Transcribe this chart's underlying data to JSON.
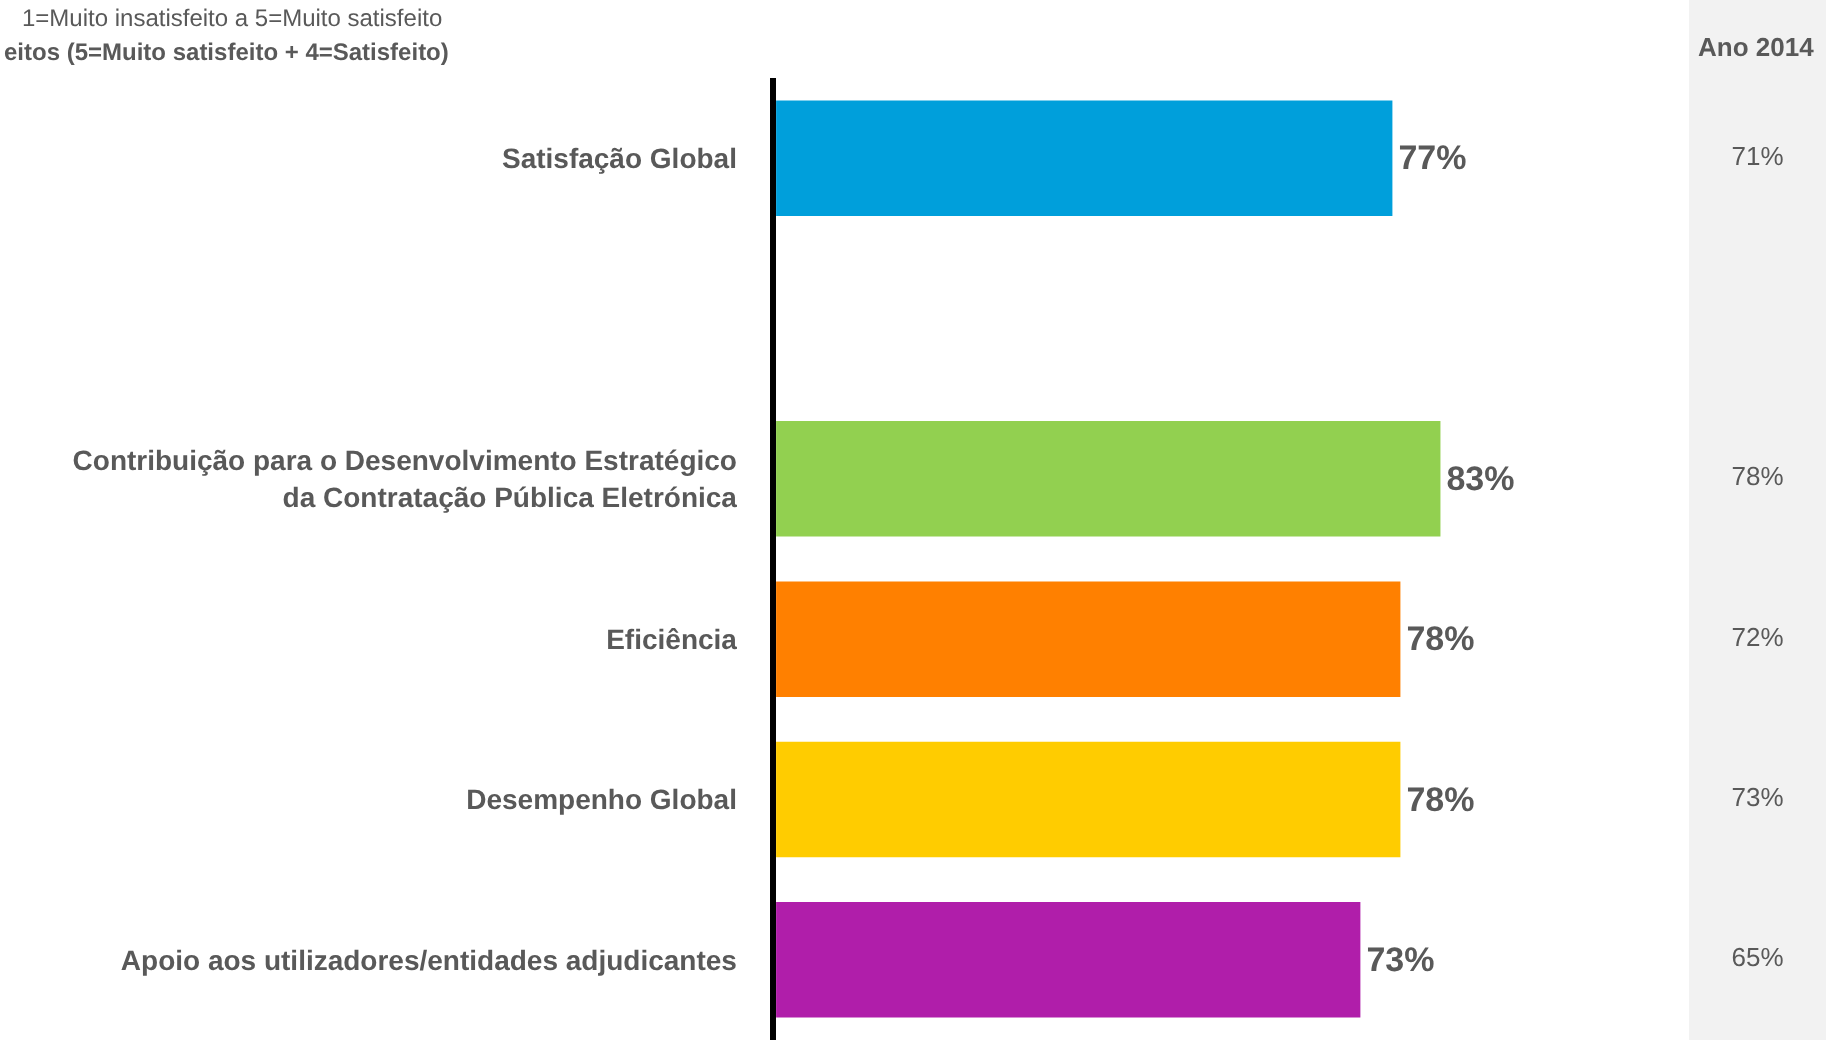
{
  "chart_data": [
    {
      "type": "bar",
      "orientation": "horizontal",
      "subtitle": "1=Muito insatisfeito a 5=Muito satisfeito",
      "title": "eitos (5=Muito satisfeito + 4=Satisfeito)",
      "categories": [
        "Satisfação Global",
        null,
        "Contribuição para o Desenvolvimento Estratégico\nda Contratação Pública Eletrónica",
        "Eficiência",
        "Desempenho Global",
        "Apoio aos utilizadores/entidades adjudicantes"
      ],
      "values": [
        77,
        null,
        83,
        78,
        78,
        73
      ],
      "colors": [
        "#009fdb",
        null,
        "#92d050",
        "#ff8000",
        "#ffcc00",
        "#b01eaa"
      ],
      "value_labels": [
        "77%",
        null,
        "83%",
        "78%",
        "78%",
        "73%"
      ],
      "legend": false
    },
    {
      "type": "other",
      "title": "Ano 2014",
      "values": [
        71,
        null,
        78,
        72,
        73,
        65
      ],
      "value_labels": [
        "71%",
        null,
        "78%",
        "72%",
        "73%",
        "65%"
      ]
    }
  ]
}
